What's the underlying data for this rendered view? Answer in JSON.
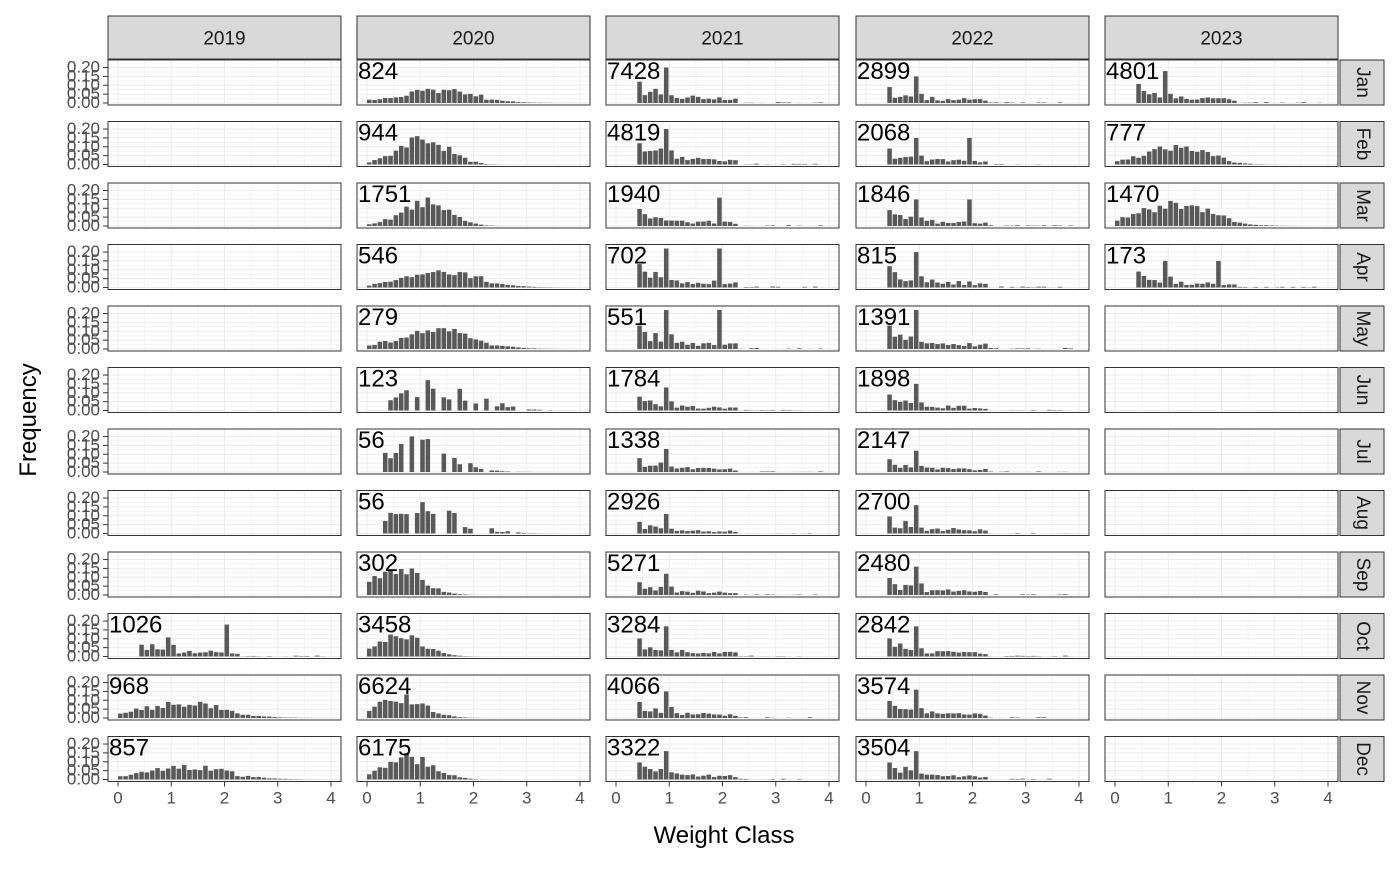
{
  "chart_data": {
    "type": "bar",
    "layout": "facet_grid",
    "xlabel": "Weight Class",
    "ylabel": "Frequency",
    "xlim": [
      0,
      4
    ],
    "ylim": [
      0,
      0.22
    ],
    "x_ticks": [
      "0",
      "1",
      "2",
      "3",
      "4"
    ],
    "y_ticks": [
      "0.00",
      "0.05",
      "0.10",
      "0.15",
      "0.20"
    ],
    "grid": true,
    "bar_color": "#595959",
    "strip_color": "#d9d9d9",
    "column_facets": [
      "2019",
      "2020",
      "2021",
      "2022",
      "2023"
    ],
    "row_facets": [
      "Jan",
      "Feb",
      "Mar",
      "Apr",
      "May",
      "Jun",
      "Jul",
      "Aug",
      "Sep",
      "Oct",
      "Nov",
      "Dec"
    ],
    "panels": [
      {
        "year": "2020",
        "month": "Jan",
        "label": "824",
        "type": "broad",
        "mode": 1.3,
        "spread": 0.75,
        "peak": 0.07
      },
      {
        "year": "2021",
        "month": "Jan",
        "label": "7428",
        "type": "multi",
        "peaks": [
          0.4,
          0.9
        ],
        "peak": 0.2
      },
      {
        "year": "2022",
        "month": "Jan",
        "label": "2899",
        "type": "multi",
        "peaks": [
          0.4,
          0.9
        ],
        "peak": 0.15
      },
      {
        "year": "2023",
        "month": "Jan",
        "label": "4801",
        "type": "multi",
        "peaks": [
          0.4,
          0.9
        ],
        "peak": 0.18
      },
      {
        "year": "2020",
        "month": "Feb",
        "label": "944",
        "type": "broad",
        "mode": 1.0,
        "spread": 0.45,
        "peak": 0.15
      },
      {
        "year": "2021",
        "month": "Feb",
        "label": "4819",
        "type": "multi",
        "peaks": [
          0.4,
          0.9
        ],
        "peak": 0.2
      },
      {
        "year": "2022",
        "month": "Feb",
        "label": "2068",
        "type": "multi",
        "peaks": [
          0.4,
          0.9,
          1.9
        ],
        "peak": 0.15
      },
      {
        "year": "2023",
        "month": "Feb",
        "label": "777",
        "type": "broad",
        "mode": 1.1,
        "spread": 0.6,
        "peak": 0.1
      },
      {
        "year": "2020",
        "month": "Mar",
        "label": "1751",
        "type": "broad",
        "mode": 1.05,
        "spread": 0.45,
        "peak": 0.13
      },
      {
        "year": "2021",
        "month": "Mar",
        "label": "1940",
        "type": "multi",
        "peaks": [
          0.4,
          1.9
        ],
        "peak": 0.16
      },
      {
        "year": "2022",
        "month": "Mar",
        "label": "1846",
        "type": "multi",
        "peaks": [
          0.4,
          0.9,
          1.9
        ],
        "peak": 0.15
      },
      {
        "year": "2023",
        "month": "Mar",
        "label": "1470",
        "type": "broad",
        "mode": 1.1,
        "spread": 0.7,
        "peak": 0.12
      },
      {
        "year": "2020",
        "month": "Apr",
        "label": "546",
        "type": "broad",
        "mode": 1.4,
        "spread": 0.75,
        "peak": 0.08
      },
      {
        "year": "2021",
        "month": "Apr",
        "label": "702",
        "type": "multi",
        "peaks": [
          0.4,
          0.9,
          1.9
        ],
        "peak": 0.22
      },
      {
        "year": "2022",
        "month": "Apr",
        "label": "815",
        "type": "multi",
        "peaks": [
          0.4,
          0.9
        ],
        "peak": 0.2
      },
      {
        "year": "2023",
        "month": "Apr",
        "label": "173",
        "type": "multi",
        "peaks": [
          0.4,
          0.9,
          1.9
        ],
        "peak": 0.15
      },
      {
        "year": "2020",
        "month": "May",
        "label": "279",
        "type": "broad",
        "mode": 1.3,
        "spread": 0.75,
        "peak": 0.1
      },
      {
        "year": "2021",
        "month": "May",
        "label": "551",
        "type": "multi",
        "peaks": [
          0.4,
          0.9,
          1.9
        ],
        "peak": 0.22
      },
      {
        "year": "2022",
        "month": "May",
        "label": "1391",
        "type": "multi",
        "peaks": [
          0.4,
          0.9
        ],
        "peak": 0.22
      },
      {
        "year": "2020",
        "month": "Jun",
        "label": "123",
        "type": "sparse",
        "mode": 1.3,
        "spread": 0.7,
        "peak": 0.12
      },
      {
        "year": "2021",
        "month": "Jun",
        "label": "1784",
        "type": "multi",
        "peaks": [
          0.4,
          0.9
        ],
        "peak": 0.13
      },
      {
        "year": "2022",
        "month": "Jun",
        "label": "1898",
        "type": "multi",
        "peaks": [
          0.4,
          0.9
        ],
        "peak": 0.15
      },
      {
        "year": "2020",
        "month": "Jul",
        "label": "56",
        "type": "sparse",
        "mode": 1.0,
        "spread": 0.6,
        "peak": 0.15
      },
      {
        "year": "2021",
        "month": "Jul",
        "label": "1338",
        "type": "multi",
        "peaks": [
          0.4,
          0.9
        ],
        "peak": 0.13
      },
      {
        "year": "2022",
        "month": "Jul",
        "label": "2147",
        "type": "multi",
        "peaks": [
          0.4,
          0.9
        ],
        "peak": 0.12
      },
      {
        "year": "2020",
        "month": "Aug",
        "label": "56",
        "type": "sparse",
        "mode": 1.0,
        "spread": 0.7,
        "peak": 0.12
      },
      {
        "year": "2021",
        "month": "Aug",
        "label": "2926",
        "type": "multi",
        "peaks": [
          0.4,
          0.9
        ],
        "peak": 0.11
      },
      {
        "year": "2022",
        "month": "Aug",
        "label": "2700",
        "type": "multi",
        "peaks": [
          0.4,
          0.9
        ],
        "peak": 0.16
      },
      {
        "year": "2020",
        "month": "Sep",
        "label": "302",
        "type": "broad",
        "mode": 0.5,
        "spread": 0.45,
        "peak": 0.15
      },
      {
        "year": "2021",
        "month": "Sep",
        "label": "5271",
        "type": "multi",
        "peaks": [
          0.4,
          0.9
        ],
        "peak": 0.12
      },
      {
        "year": "2022",
        "month": "Sep",
        "label": "2480",
        "type": "multi",
        "peaks": [
          0.4,
          0.9
        ],
        "peak": 0.16
      },
      {
        "year": "2019",
        "month": "Oct",
        "label": "1026",
        "type": "multi",
        "peaks": [
          0.9,
          2.0
        ],
        "peak": 0.18
      },
      {
        "year": "2020",
        "month": "Oct",
        "label": "3458",
        "type": "broad",
        "mode": 0.55,
        "spread": 0.45,
        "peak": 0.12
      },
      {
        "year": "2021",
        "month": "Oct",
        "label": "3284",
        "type": "multi",
        "peaks": [
          0.4,
          0.9
        ],
        "peak": 0.17
      },
      {
        "year": "2022",
        "month": "Oct",
        "label": "2842",
        "type": "multi",
        "peaks": [
          0.4,
          0.9
        ],
        "peak": 0.17
      },
      {
        "year": "2019",
        "month": "Nov",
        "label": "968",
        "type": "broad",
        "mode": 1.2,
        "spread": 0.8,
        "peak": 0.08
      },
      {
        "year": "2020",
        "month": "Nov",
        "label": "6624",
        "type": "broad",
        "mode": 0.6,
        "spread": 0.45,
        "peak": 0.11
      },
      {
        "year": "2021",
        "month": "Nov",
        "label": "4066",
        "type": "multi",
        "peaks": [
          0.4,
          0.9
        ],
        "peak": 0.15
      },
      {
        "year": "2022",
        "month": "Nov",
        "label": "3574",
        "type": "multi",
        "peaks": [
          0.4,
          0.9
        ],
        "peak": 0.16
      },
      {
        "year": "2019",
        "month": "Dec",
        "label": "857",
        "type": "broad",
        "mode": 1.3,
        "spread": 0.8,
        "peak": 0.07
      },
      {
        "year": "2020",
        "month": "Dec",
        "label": "6175",
        "type": "broad",
        "mode": 0.75,
        "spread": 0.45,
        "peak": 0.12
      },
      {
        "year": "2021",
        "month": "Dec",
        "label": "3322",
        "type": "multi",
        "peaks": [
          0.4,
          0.9
        ],
        "peak": 0.16
      },
      {
        "year": "2022",
        "month": "Dec",
        "label": "3504",
        "type": "multi",
        "peaks": [
          0.4,
          0.9
        ],
        "peak": 0.16
      }
    ]
  }
}
